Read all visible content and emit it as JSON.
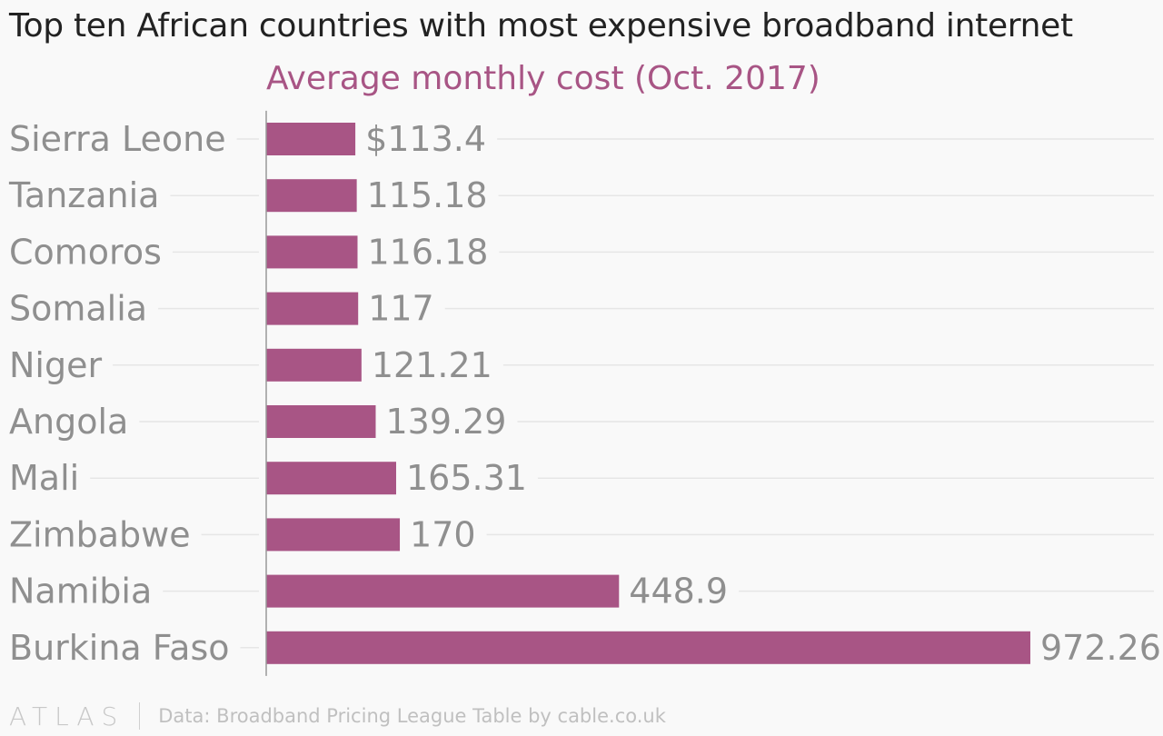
{
  "title": "Top ten African countries with most expensive broadband internet",
  "subtitle": "Average monthly cost (Oct. 2017)",
  "footer": {
    "brand": "ATLAS",
    "source": "Data: Broadband Pricing League Table by cable.co.uk"
  },
  "colors": {
    "bar": "#a85585",
    "subtitle": "#a85585",
    "label": "#8f8f8f",
    "grid": "#e6e6e6",
    "axis": "#999999"
  },
  "chart_data": {
    "type": "bar",
    "orientation": "horizontal",
    "title": "Top ten African countries with most expensive broadband internet",
    "subtitle": "Average monthly cost (Oct. 2017)",
    "categories": [
      "Sierra Leone",
      "Tanzania",
      "Comoros",
      "Somalia",
      "Niger",
      "Angola",
      "Mali",
      "Zimbabwe",
      "Namibia",
      "Burkina Faso"
    ],
    "values": [
      113.4,
      115.18,
      116.18,
      117,
      121.21,
      139.29,
      165.31,
      170,
      448.9,
      972.26
    ],
    "value_labels": [
      "$113.4",
      "115.18",
      "116.18",
      "117",
      "121.21",
      "139.29",
      "165.31",
      "170",
      "448.9",
      "972.26"
    ],
    "xlim": [
      0,
      972.26
    ],
    "grid": true,
    "legend": "none"
  }
}
